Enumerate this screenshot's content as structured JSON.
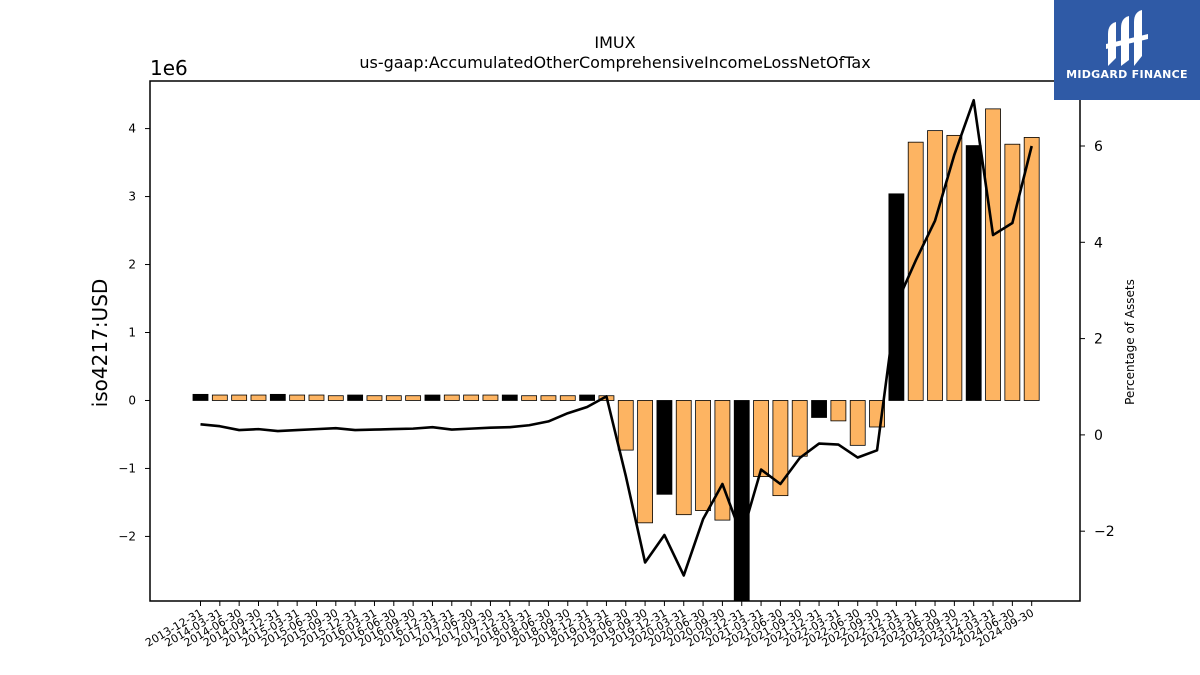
{
  "chart_data": {
    "type": "bar",
    "title": "IMUX",
    "subtitle": "us-gaap:AccumulatedOtherComprehensiveIncomeLossNetOfTax",
    "ylabel": "iso4217:USD",
    "y_multiplier_label": "1e6",
    "y2label": "Percentage of Assets",
    "ylim": [
      -2950000,
      4700000
    ],
    "y2lim": [
      -3.45,
      7.35
    ],
    "yticks": [
      -2,
      -1,
      0,
      1,
      2,
      3,
      4
    ],
    "y2ticks": [
      -2,
      0,
      2,
      4,
      6
    ],
    "grid": false,
    "colors": {
      "bar": "#fdb462",
      "bar_highlight": "#000000",
      "line": "#000000"
    },
    "categories": [
      "2013-12-31",
      "2014-03-31",
      "2014-06-30",
      "2014-09-30",
      "2014-12-31",
      "2015-03-31",
      "2015-06-30",
      "2015-09-30",
      "2015-12-31",
      "2016-03-31",
      "2016-06-30",
      "2016-09-30",
      "2016-12-31",
      "2017-03-31",
      "2017-06-30",
      "2017-09-30",
      "2017-12-31",
      "2018-03-31",
      "2018-06-30",
      "2018-09-30",
      "2018-12-31",
      "2019-03-31",
      "2019-06-30",
      "2019-09-30",
      "2019-12-31",
      "2020-03-31",
      "2020-06-30",
      "2020-09-30",
      "2020-12-31",
      "2021-03-31",
      "2021-06-30",
      "2021-09-30",
      "2021-12-31",
      "2022-03-31",
      "2022-06-30",
      "2022-09-30",
      "2022-12-31",
      "2023-03-31",
      "2023-06-30",
      "2023-09-30",
      "2023-12-31",
      "2024-03-31",
      "2024-06-30",
      "2024-09-30"
    ],
    "series": [
      {
        "type": "bar",
        "values": [
          90000,
          80000,
          80000,
          80000,
          90000,
          80000,
          80000,
          70000,
          80000,
          70000,
          70000,
          70000,
          80000,
          80000,
          80000,
          80000,
          80000,
          70000,
          70000,
          70000,
          80000,
          70000,
          -730000,
          -1800000,
          -1380000,
          -1680000,
          -1620000,
          -1760000,
          -2950000,
          -1120000,
          -1400000,
          -820000,
          -250000,
          -300000,
          -660000,
          -390000,
          3040000,
          3800000,
          3970000,
          3900000,
          3750000,
          4290000,
          3770000,
          3870000
        ],
        "highlight": [
          true,
          false,
          false,
          false,
          true,
          false,
          false,
          false,
          true,
          false,
          false,
          false,
          true,
          false,
          false,
          false,
          true,
          false,
          false,
          false,
          true,
          false,
          false,
          false,
          true,
          false,
          false,
          false,
          true,
          false,
          false,
          false,
          true,
          false,
          false,
          false,
          true,
          false,
          false,
          false,
          true,
          false,
          false,
          false
        ]
      },
      {
        "type": "line",
        "axis": "right",
        "values": [
          0.22,
          0.18,
          0.1,
          0.12,
          0.08,
          0.1,
          0.12,
          0.14,
          0.1,
          0.11,
          0.12,
          0.13,
          0.16,
          0.11,
          0.13,
          0.15,
          0.16,
          0.2,
          0.28,
          0.45,
          0.58,
          0.8,
          -0.85,
          -2.65,
          -2.08,
          -2.92,
          -1.75,
          -1.02,
          -2.1,
          -0.72,
          -1.02,
          -0.48,
          -0.18,
          -0.2,
          -0.47,
          -0.32,
          2.72,
          3.62,
          4.45,
          5.82,
          6.95,
          4.15,
          4.4,
          6.0
        ]
      }
    ]
  },
  "logo": {
    "text": "MIDGARD FINANCE"
  }
}
